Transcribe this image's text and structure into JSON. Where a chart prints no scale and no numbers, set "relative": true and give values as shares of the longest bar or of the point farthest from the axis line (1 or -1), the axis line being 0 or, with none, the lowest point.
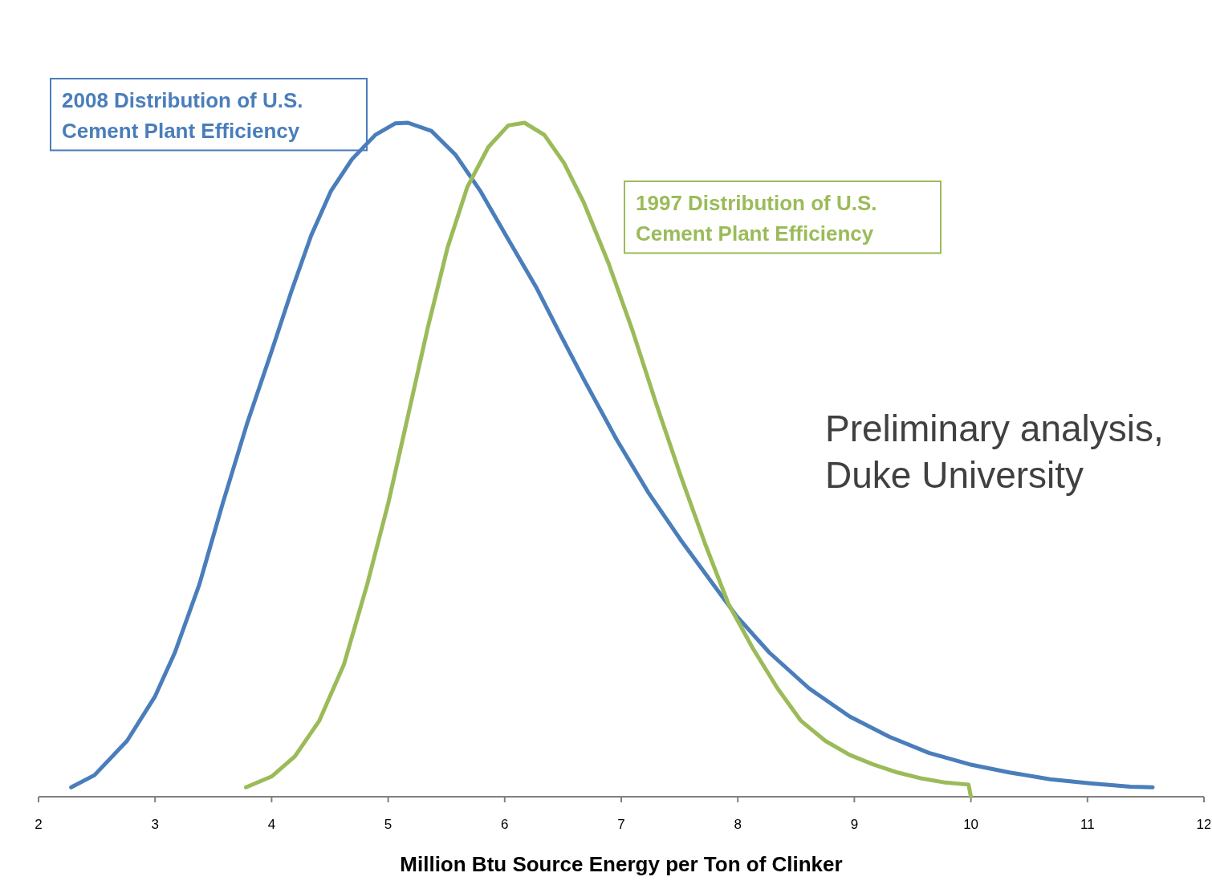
{
  "chart_data": {
    "type": "line",
    "relative": true,
    "xlabel": "Million Btu Source Energy per Ton of Clinker",
    "xlim": [
      2,
      12
    ],
    "xticks": [
      2,
      3,
      4,
      5,
      6,
      7,
      8,
      9,
      10,
      11,
      12
    ],
    "grid": false,
    "marker": "none",
    "line_style": "solid",
    "tick_labels": "x",
    "annotations": [
      "Preliminary analysis,",
      "Duke University"
    ],
    "series": [
      {
        "name": "2008 Distribution of U.S. Cement Plant Efficiency",
        "color": "#4a7ebb",
        "x": [
          2.28,
          2.48,
          2.76,
          3.0,
          3.17,
          3.38,
          3.58,
          3.79,
          4.0,
          4.17,
          4.34,
          4.51,
          4.69,
          4.89,
          5.06,
          5.17,
          5.37,
          5.58,
          5.79,
          6.03,
          6.27,
          6.48,
          6.68,
          6.96,
          7.23,
          7.51,
          7.79,
          7.99,
          8.27,
          8.61,
          8.96,
          9.3,
          9.64,
          9.99,
          10.33,
          10.68,
          11.02,
          11.37,
          11.56
        ],
        "values": [
          0.014,
          0.032,
          0.083,
          0.149,
          0.214,
          0.315,
          0.435,
          0.554,
          0.661,
          0.75,
          0.833,
          0.899,
          0.946,
          0.982,
          0.999,
          1,
          0.988,
          0.952,
          0.899,
          0.827,
          0.756,
          0.685,
          0.619,
          0.53,
          0.452,
          0.381,
          0.315,
          0.268,
          0.214,
          0.161,
          0.119,
          0.089,
          0.065,
          0.048,
          0.036,
          0.026,
          0.02,
          0.015,
          0.014
        ]
      },
      {
        "name": "1997 Distribution of U.S. Cement Plant Efficiency",
        "color": "#9bbb59",
        "x": [
          3.78,
          4.0,
          4.2,
          4.41,
          4.62,
          4.82,
          5.0,
          5.17,
          5.34,
          5.51,
          5.68,
          5.86,
          6.03,
          6.17,
          6.34,
          6.51,
          6.68,
          6.89,
          7.1,
          7.3,
          7.51,
          7.72,
          7.92,
          8.13,
          8.34,
          8.54,
          8.75,
          8.96,
          9.16,
          9.37,
          9.58,
          9.78,
          9.98,
          10.0
        ],
        "values": [
          0.014,
          0.03,
          0.06,
          0.113,
          0.196,
          0.315,
          0.435,
          0.565,
          0.696,
          0.815,
          0.905,
          0.964,
          0.996,
          1,
          0.982,
          0.94,
          0.881,
          0.792,
          0.69,
          0.583,
          0.476,
          0.375,
          0.286,
          0.22,
          0.161,
          0.113,
          0.083,
          0.062,
          0.048,
          0.036,
          0.027,
          0.021,
          0.018,
          0
        ]
      }
    ]
  }
}
